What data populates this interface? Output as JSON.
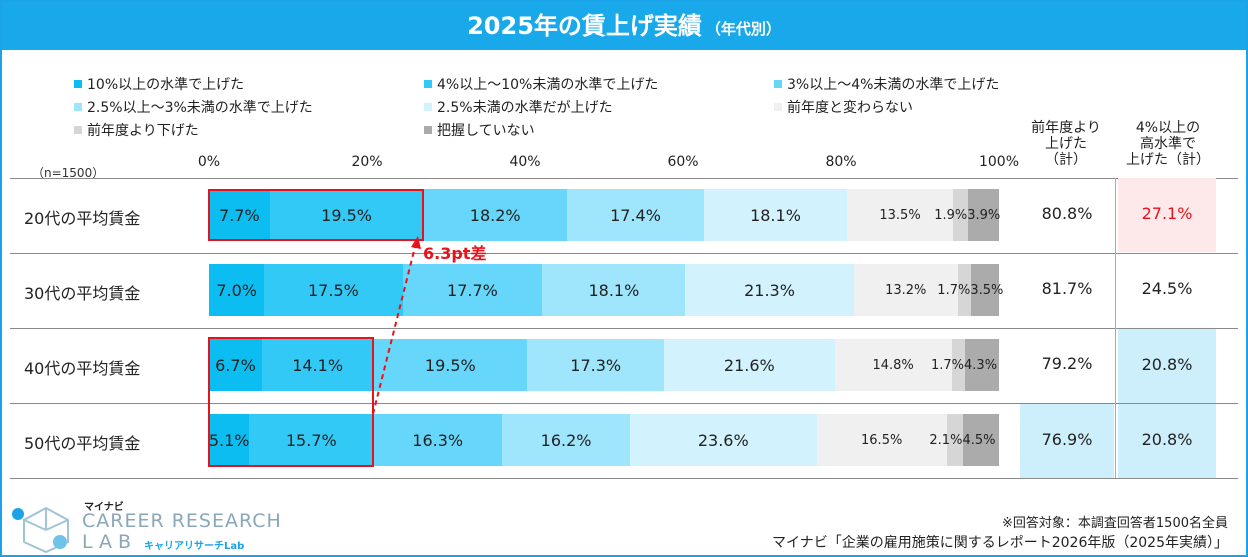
{
  "chart_data": {
    "type": "bar",
    "stacked": true,
    "orientation": "horizontal",
    "title": "2025年の賃上げ実績",
    "subtitle": "（年代別）",
    "sample_note": "（n=1500）",
    "categories": [
      "20代の平均賃金",
      "30代の平均賃金",
      "40代の平均賃金",
      "50代の平均賃金"
    ],
    "xlim": [
      0,
      100
    ],
    "x_ticks": [
      "0%",
      "20%",
      "40%",
      "60%",
      "80%",
      "100%"
    ],
    "series": [
      {
        "name": "10%以上の水準で上げた",
        "color": "#0bbdf0",
        "values": [
          7.7,
          7.0,
          6.7,
          5.1
        ],
        "labels": [
          "7.7%",
          "7.0%",
          "6.7%",
          "5.1%"
        ]
      },
      {
        "name": "4%以上～10%未満の水準で上げた",
        "color": "#32c9f7",
        "values": [
          19.5,
          17.5,
          14.1,
          15.7
        ],
        "labels": [
          "19.5%",
          "17.5%",
          "14.1%",
          "15.7%"
        ]
      },
      {
        "name": "3%以上～4%未満の水準で上げた",
        "color": "#66d7fa",
        "values": [
          18.2,
          17.7,
          19.5,
          16.3
        ],
        "labels": [
          "18.2%",
          "17.7%",
          "19.5%",
          "16.3%"
        ]
      },
      {
        "name": "2.5%以上～3%未満の水準で上げた",
        "color": "#9fe5fc",
        "values": [
          17.4,
          18.1,
          17.3,
          16.2
        ],
        "labels": [
          "17.4%",
          "18.1%",
          "17.3%",
          "16.2%"
        ]
      },
      {
        "name": "2.5%未満の水準だが上げた",
        "color": "#d2f3fe",
        "values": [
          18.1,
          21.3,
          21.6,
          23.6
        ],
        "labels": [
          "18.1%",
          "21.3%",
          "21.6%",
          "23.6%"
        ]
      },
      {
        "name": "前年度と変わらない",
        "color": "#f0f0f0",
        "values": [
          13.5,
          13.2,
          14.8,
          16.5
        ],
        "labels": [
          "13.5%",
          "13.2%",
          "14.8%",
          "16.5%"
        ]
      },
      {
        "name": "前年度より下げた",
        "color": "#d6d6d6",
        "values": [
          1.9,
          1.7,
          1.7,
          2.1
        ],
        "labels": [
          "1.9%",
          "1.7%",
          "1.7%",
          "2.1%"
        ]
      },
      {
        "name": "把握していない",
        "color": "#ababab",
        "values": [
          3.9,
          3.5,
          4.3,
          4.5
        ],
        "labels": [
          "3.9%",
          "3.5%",
          "4.3%",
          "4.5%"
        ]
      }
    ],
    "totals": {
      "raised_header": [
        "前年度より",
        "上げた",
        "（計）"
      ],
      "raised": [
        "80.8%",
        "81.7%",
        "79.2%",
        "76.9%"
      ],
      "high_header": [
        "4%以上の",
        "高水準で",
        "上げた（計）"
      ],
      "high": [
        "27.1%",
        "24.5%",
        "20.8%",
        "20.8%"
      ],
      "high_emphasis_color": "#e8121a"
    },
    "annotation": "6.3pt差"
  },
  "colors": {
    "header": "#19a8ea",
    "highlight": "#e8121a",
    "pink_cell": "#fde8ea",
    "blue_cell": "#cdeffc"
  },
  "logo": {
    "top": "マイナビ",
    "main1": "CAREER RESEARCH",
    "main2": "LAB",
    "sub": "キャリアリサーチLab"
  },
  "footer": {
    "note1": "※回答対象：本調査回答者1500名全員",
    "note2": "マイナビ「企業の雇用施策に関するレポート2026年版（2025年実績）」"
  }
}
